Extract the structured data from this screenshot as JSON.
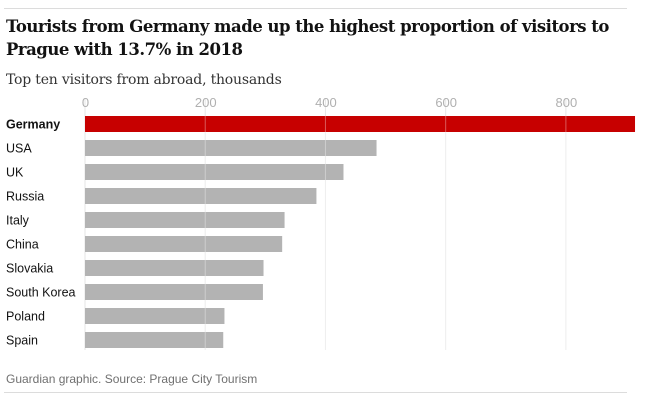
{
  "header": {
    "title": "Tourists from Germany made up the highest proportion of visitors to Prague with 13.7% in 2018",
    "subtitle": "Top ten visitors from abroad, thousands"
  },
  "footer": {
    "source": "Guardian graphic. Source: Prague City Tourism"
  },
  "colors": {
    "highlight": "#c70000",
    "bar": "#b3b3b3",
    "grid": "#e6e6e6"
  },
  "chart_data": {
    "type": "bar",
    "orientation": "horizontal",
    "title": "Tourists from Germany made up the highest proportion of visitors to Prague with 13.7% in 2018",
    "subtitle": "Top ten visitors from abroad, thousands",
    "xlabel": "",
    "ylabel": "",
    "xlim": [
      0,
      900
    ],
    "xticks": [
      0,
      200,
      400,
      600,
      800
    ],
    "grid": true,
    "legend": "none",
    "highlight_category": "Germany",
    "categories": [
      "Germany",
      "USA",
      "UK",
      "Russia",
      "Italy",
      "China",
      "Slovakia",
      "South Korea",
      "Poland",
      "Spain"
    ],
    "values": [
      915,
      485,
      430,
      385,
      332,
      328,
      297,
      296,
      232,
      230
    ]
  }
}
